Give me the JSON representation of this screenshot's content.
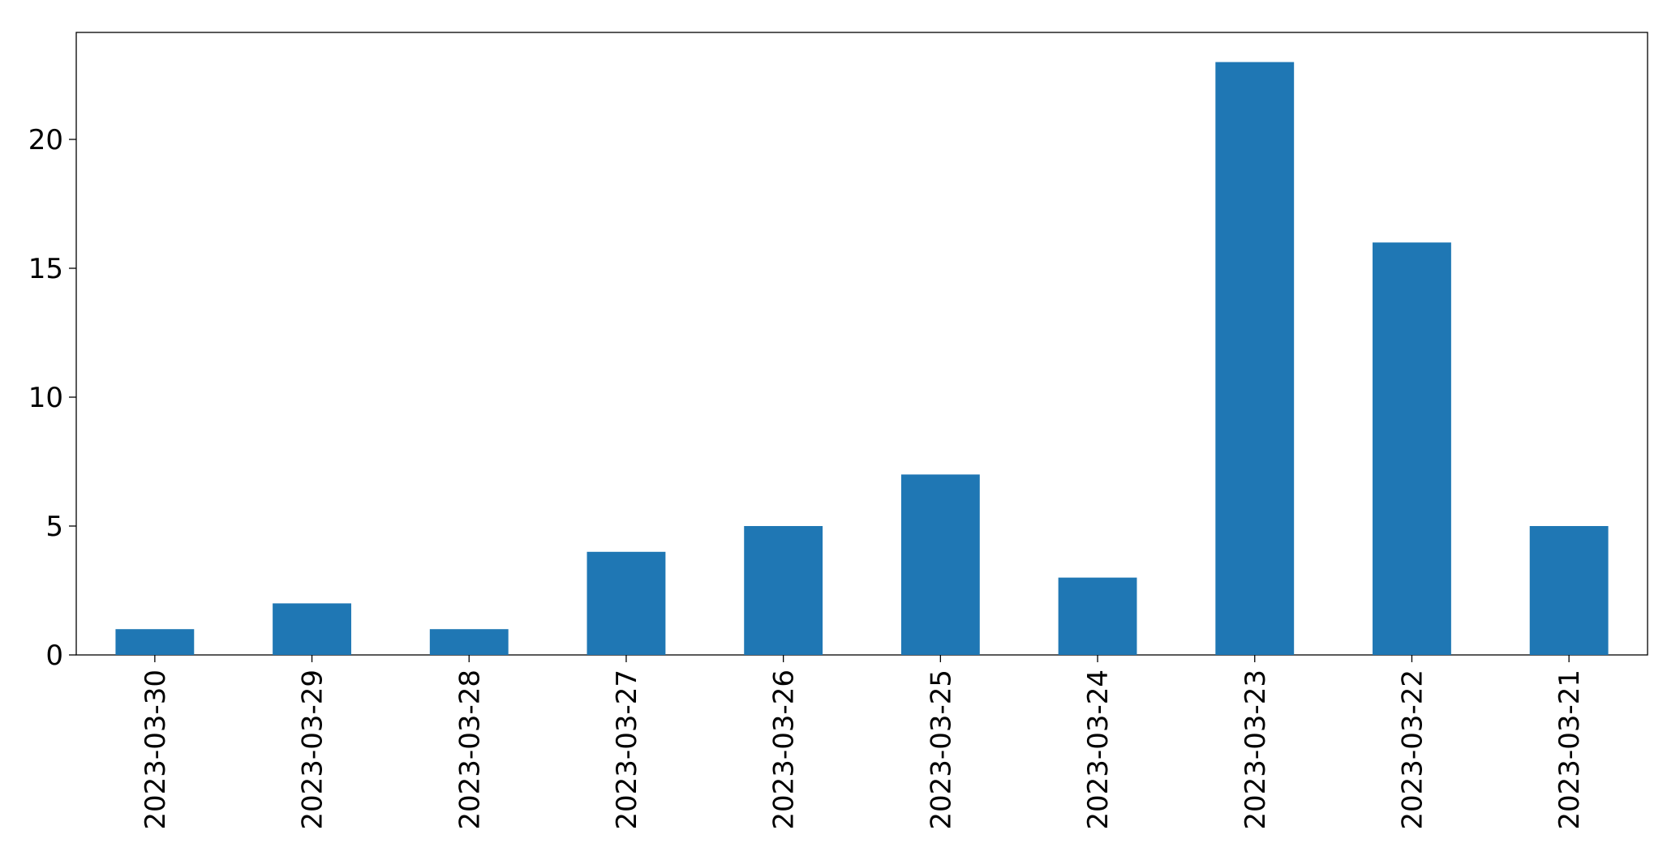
{
  "chart_data": {
    "type": "bar",
    "categories": [
      "2023-03-30",
      "2023-03-29",
      "2023-03-28",
      "2023-03-27",
      "2023-03-26",
      "2023-03-25",
      "2023-03-24",
      "2023-03-23",
      "2023-03-22",
      "2023-03-21"
    ],
    "values": [
      1,
      2,
      1,
      4,
      5,
      7,
      3,
      23,
      16,
      5
    ],
    "color": "#1f77b4",
    "ylim": [
      0,
      24.15
    ],
    "yticks": [
      0,
      5,
      10,
      15,
      20
    ],
    "grid": false
  }
}
